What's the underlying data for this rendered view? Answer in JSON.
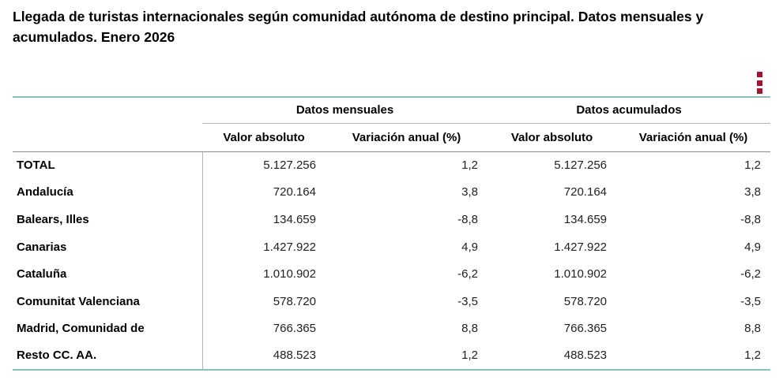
{
  "title": "Llegada de turistas internacionales según comunidad autónoma de destino principal. Datos mensuales y acumulados. Enero 2026",
  "menu": {
    "icon": "kebab-vertical-menu-icon"
  },
  "colors": {
    "accent_teal": "#8DBDBA",
    "menu_red": "#A31432"
  },
  "table": {
    "group_headers": [
      "Datos mensuales",
      "Datos acumulados"
    ],
    "sub_headers": [
      "Valor absoluto",
      "Variación anual (%)",
      "Valor absoluto",
      "Variación anual (%)"
    ],
    "rows": [
      {
        "label": "TOTAL",
        "cells": [
          "5.127.256",
          "1,2",
          "5.127.256",
          "1,2"
        ]
      },
      {
        "label": "Andalucía",
        "cells": [
          "720.164",
          "3,8",
          "720.164",
          "3,8"
        ]
      },
      {
        "label": "Balears, Illes",
        "cells": [
          "134.659",
          "-8,8",
          "134.659",
          "-8,8"
        ]
      },
      {
        "label": "Canarias",
        "cells": [
          "1.427.922",
          "4,9",
          "1.427.922",
          "4,9"
        ]
      },
      {
        "label": "Cataluña",
        "cells": [
          "1.010.902",
          "-6,2",
          "1.010.902",
          "-6,2"
        ]
      },
      {
        "label": "Comunitat Valenciana",
        "cells": [
          "578.720",
          "-3,5",
          "578.720",
          "-3,5"
        ]
      },
      {
        "label": "Madrid, Comunidad de",
        "cells": [
          "766.365",
          "8,8",
          "766.365",
          "8,8"
        ]
      },
      {
        "label": "Resto CC. AA.",
        "cells": [
          "488.523",
          "1,2",
          "488.523",
          "1,2"
        ]
      }
    ]
  }
}
